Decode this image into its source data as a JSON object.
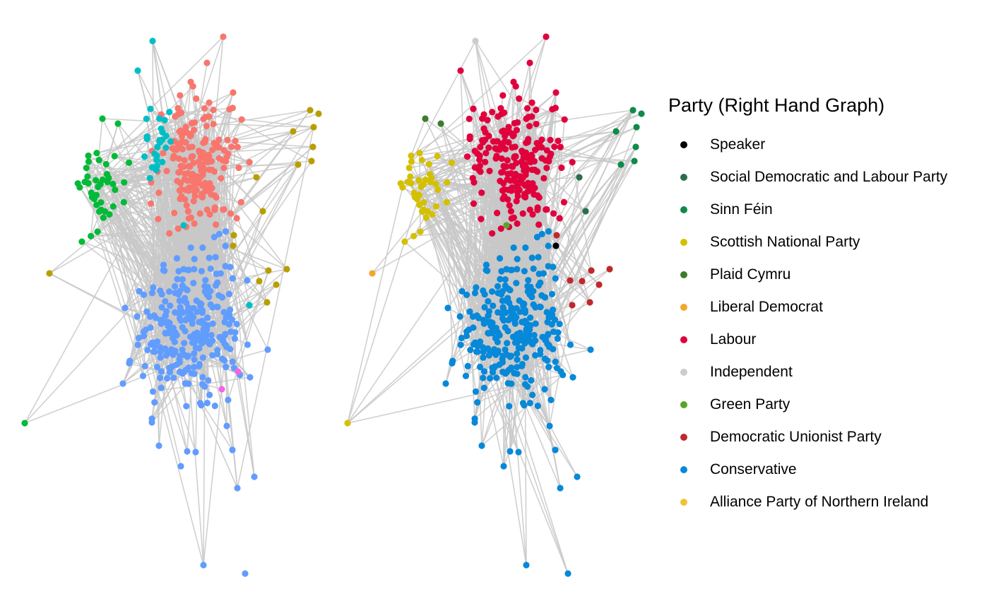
{
  "legend": {
    "title": "Party (Right Hand Graph)",
    "items": [
      {
        "label": "Speaker",
        "color": "#000000"
      },
      {
        "label": "Social Democratic and Labour Party",
        "color": "#2a6e4e"
      },
      {
        "label": "Sinn Féin",
        "color": "#0f8a4a"
      },
      {
        "label": "Scottish National Party",
        "color": "#d4c000"
      },
      {
        "label": "Plaid Cymru",
        "color": "#3a7d2c"
      },
      {
        "label": "Liberal Democrat",
        "color": "#f3a72b"
      },
      {
        "label": "Labour",
        "color": "#e0003c"
      },
      {
        "label": "Independent",
        "color": "#cccccc"
      },
      {
        "label": "Green Party",
        "color": "#5aa32a"
      },
      {
        "label": "Democratic Unionist Party",
        "color": "#c0282c"
      },
      {
        "label": "Conservative",
        "color": "#0788d8"
      },
      {
        "label": "Alliance Party of Northern Ireland",
        "color": "#f2c136"
      }
    ]
  },
  "left_graph_colors": {
    "community_red": "#f8766d",
    "community_blue": "#619cff",
    "community_green": "#00ba38",
    "community_cyan": "#00bfc4",
    "community_olive": "#b79f00",
    "community_magenta": "#f564e3"
  },
  "edge_color": "#c8c8c8"
}
